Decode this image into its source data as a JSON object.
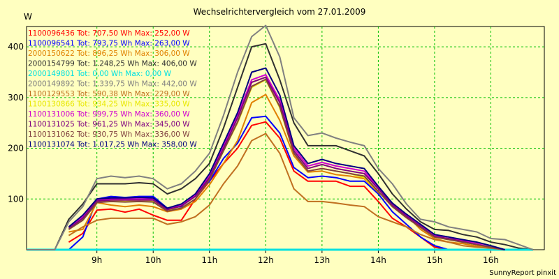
{
  "chart_data": {
    "type": "line",
    "title": "Wechselrichtervergleich vom 27.01.2009",
    "ylabel": "W",
    "footer": "SunnyReport pinxit",
    "ylim": [
      0,
      440
    ],
    "xlim": [
      7.75,
      16.95
    ],
    "yticks": [
      100,
      200,
      300,
      400
    ],
    "xticks": [
      9,
      10,
      11,
      12,
      13,
      14,
      15,
      16
    ],
    "xtick_labels": [
      "9h",
      "10h",
      "11h",
      "12h",
      "13h",
      "14h",
      "15h",
      "16h"
    ],
    "grid": true,
    "legend_position": "top-left",
    "x": [
      7.75,
      8.0,
      8.25,
      8.5,
      8.75,
      9.0,
      9.25,
      9.5,
      9.75,
      10.0,
      10.25,
      10.5,
      10.75,
      11.0,
      11.25,
      11.5,
      11.75,
      12.0,
      12.25,
      12.5,
      12.75,
      13.0,
      13.25,
      13.5,
      13.75,
      14.0,
      14.25,
      14.5,
      14.75,
      15.0,
      15.25,
      15.5,
      15.75,
      16.0,
      16.25,
      16.5,
      16.75
    ],
    "series": [
      {
        "name": "1100096436",
        "label": "Tot: 707,50 Wh Max: 252,00 W",
        "color": "#ff0000",
        "values": [
          null,
          null,
          null,
          15,
          32,
          78,
          80,
          74,
          80,
          68,
          58,
          58,
          100,
          135,
          170,
          200,
          245,
          252,
          220,
          155,
          135,
          135,
          135,
          125,
          125,
          95,
          62,
          45,
          25,
          5,
          0,
          null,
          null,
          null,
          null,
          null,
          null
        ]
      },
      {
        "name": "1100096541",
        "label": "Tot: 793,75 Wh Max: 263,00 W",
        "color": "#0000ff",
        "values": [
          null,
          null,
          null,
          0,
          25,
          100,
          105,
          103,
          105,
          105,
          82,
          85,
          110,
          135,
          180,
          210,
          260,
          263,
          230,
          162,
          142,
          145,
          142,
          135,
          135,
          110,
          75,
          50,
          25,
          8,
          0,
          null,
          null,
          null,
          null,
          null,
          null
        ]
      },
      {
        "name": "2000150622",
        "label": "Tot: 896,25 Wh Max: 306,00 W",
        "color": "#e08000",
        "values": [
          null,
          null,
          null,
          35,
          40,
          93,
          88,
          85,
          88,
          85,
          75,
          80,
          95,
          128,
          170,
          215,
          290,
          306,
          255,
          185,
          153,
          155,
          148,
          145,
          140,
          113,
          92,
          68,
          40,
          22,
          15,
          12,
          7,
          5,
          0,
          0,
          0
        ]
      },
      {
        "name": "2000154799",
        "label": "Tot: 1.248,25 Wh Max: 406,00 W",
        "color": "#303030",
        "values": [
          0,
          0,
          0,
          60,
          90,
          130,
          130,
          130,
          132,
          130,
          110,
          120,
          140,
          170,
          240,
          320,
          400,
          406,
          335,
          250,
          205,
          205,
          205,
          195,
          185,
          150,
          110,
          80,
          55,
          40,
          38,
          30,
          25,
          15,
          10,
          3,
          0
        ]
      },
      {
        "name": "2000149801",
        "label": "Tot: 0,00 Wh Max: 0,00 W",
        "color": "#00e0e0",
        "values": [
          0,
          0,
          0,
          0,
          0,
          0,
          0,
          0,
          0,
          0,
          0,
          0,
          0,
          0,
          0,
          0,
          0,
          0,
          0,
          0,
          0,
          0,
          0,
          0,
          0,
          0,
          0,
          0,
          0,
          0,
          0,
          0,
          0,
          0,
          0,
          0,
          0
        ]
      },
      {
        "name": "2000149892",
        "label": "Tot: 1.339,75 Wh Max: 442,00 W",
        "color": "#808080",
        "values": [
          0,
          0,
          0,
          55,
          85,
          140,
          145,
          142,
          145,
          140,
          120,
          130,
          155,
          190,
          265,
          350,
          420,
          442,
          380,
          260,
          225,
          230,
          220,
          212,
          205,
          160,
          130,
          90,
          60,
          55,
          45,
          40,
          35,
          22,
          20,
          10,
          0
        ]
      },
      {
        "name": "1100129553",
        "label": "Tot: 590,38 Wh Max: 229,00 W",
        "color": "#c07020",
        "values": [
          null,
          null,
          null,
          28,
          45,
          58,
          62,
          62,
          62,
          62,
          50,
          55,
          65,
          88,
          130,
          165,
          215,
          229,
          190,
          120,
          95,
          95,
          92,
          88,
          85,
          65,
          55,
          45,
          30,
          20,
          15,
          8,
          5,
          3,
          0,
          null,
          null
        ]
      },
      {
        "name": "1100130866",
        "label": "Tot: 934,25 Wh Max: 335,00 W",
        "color": "#e8e800",
        "values": [
          null,
          null,
          null,
          40,
          60,
          95,
          97,
          95,
          97,
          95,
          78,
          82,
          100,
          138,
          195,
          250,
          320,
          335,
          280,
          190,
          155,
          160,
          155,
          150,
          142,
          115,
          85,
          65,
          45,
          25,
          20,
          15,
          10,
          5,
          0,
          null,
          null
        ]
      },
      {
        "name": "1100131006",
        "label": "Tot: 999,75 Wh Max: 360,00 W",
        "color": "#d000d0",
        "values": [
          null,
          null,
          null,
          45,
          65,
          98,
          100,
          100,
          100,
          100,
          80,
          88,
          108,
          145,
          205,
          265,
          335,
          345,
          295,
          200,
          165,
          172,
          165,
          160,
          155,
          122,
          90,
          68,
          48,
          28,
          25,
          18,
          12,
          5,
          0,
          null,
          null
        ]
      },
      {
        "name": "1100131025",
        "label": "Tot: 961,25 Wh Max: 345,00 W",
        "color": "#800080",
        "values": [
          null,
          null,
          null,
          42,
          62,
          96,
          98,
          98,
          98,
          98,
          79,
          86,
          105,
          142,
          200,
          260,
          330,
          340,
          290,
          195,
          160,
          168,
          160,
          155,
          150,
          120,
          88,
          66,
          46,
          26,
          22,
          16,
          10,
          5,
          0,
          null,
          null
        ]
      },
      {
        "name": "1100131062",
        "label": "Tot: 930,75 Wh Max: 336,00 W",
        "color": "#804040",
        "values": [
          null,
          null,
          null,
          40,
          58,
          93,
          95,
          94,
          95,
          94,
          76,
          82,
          100,
          138,
          195,
          252,
          322,
          336,
          282,
          190,
          155,
          160,
          155,
          150,
          145,
          115,
          85,
          63,
          44,
          25,
          20,
          15,
          10,
          5,
          0,
          null,
          null
        ]
      },
      {
        "name": "1100131074",
        "label": "Tot: 1.017,25 Wh Max: 358,00 W",
        "color": "#000080",
        "values": [
          null,
          null,
          null,
          45,
          68,
          100,
          102,
          102,
          103,
          102,
          82,
          90,
          110,
          150,
          210,
          270,
          350,
          358,
          305,
          205,
          170,
          178,
          170,
          165,
          160,
          125,
          92,
          70,
          50,
          30,
          25,
          20,
          15,
          8,
          0,
          null,
          null
        ]
      }
    ]
  }
}
